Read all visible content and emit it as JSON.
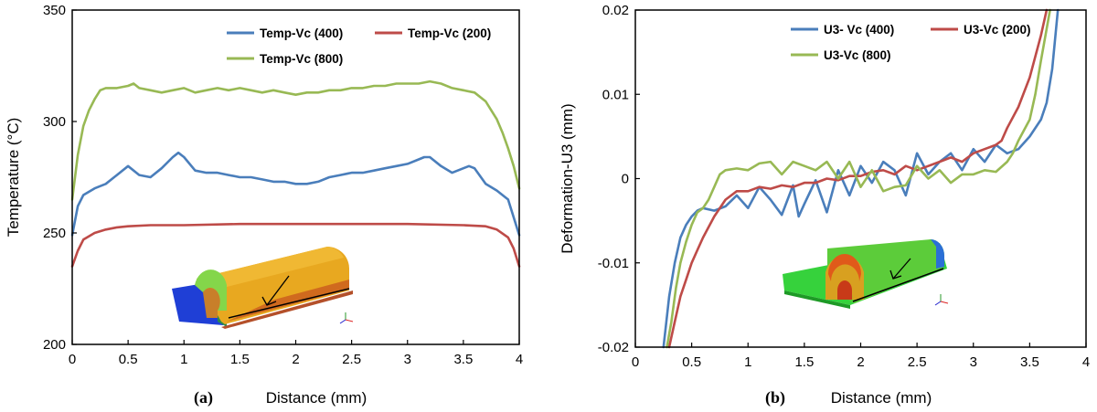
{
  "chart_data": [
    {
      "type": "line",
      "panel_label": "(a)",
      "title": "",
      "xlabel": "Distance (mm)",
      "ylabel": "Temperature (°C)",
      "xlim": [
        0,
        4
      ],
      "ylim": [
        200,
        350
      ],
      "xticks": [
        "0",
        "0.5",
        "1",
        "1.5",
        "2",
        "2.5",
        "3",
        "3.5",
        "4"
      ],
      "yticks": [
        "200",
        "250",
        "300",
        "350"
      ],
      "grid": false,
      "legend_position": "top-right",
      "inset": "3D model of tool-workpiece with arrow",
      "series": [
        {
          "name": "Temp-Vc (400)",
          "color": "#4a7ebb",
          "x": [
            0,
            0.05,
            0.1,
            0.2,
            0.3,
            0.4,
            0.5,
            0.6,
            0.7,
            0.8,
            0.9,
            0.95,
            1.0,
            1.1,
            1.2,
            1.3,
            1.4,
            1.5,
            1.6,
            1.7,
            1.8,
            1.9,
            2.0,
            2.1,
            2.2,
            2.3,
            2.4,
            2.5,
            2.6,
            2.7,
            2.8,
            2.9,
            3.0,
            3.1,
            3.15,
            3.2,
            3.3,
            3.4,
            3.5,
            3.55,
            3.6,
            3.7,
            3.8,
            3.9,
            4.0
          ],
          "values": [
            249,
            262,
            267,
            270,
            272,
            276,
            280,
            276,
            275,
            279,
            284,
            286,
            284,
            278,
            277,
            277,
            276,
            275,
            275,
            274,
            273,
            273,
            272,
            272,
            273,
            275,
            276,
            277,
            277,
            278,
            279,
            280,
            281,
            283,
            284,
            284,
            280,
            277,
            279,
            280,
            279,
            272,
            269,
            265,
            249
          ]
        },
        {
          "name": "Temp-Vc (200)",
          "color": "#be4b48",
          "x": [
            0,
            0.05,
            0.1,
            0.2,
            0.3,
            0.4,
            0.5,
            0.7,
            1.0,
            1.5,
            2.0,
            2.5,
            3.0,
            3.5,
            3.7,
            3.8,
            3.9,
            3.95,
            4.0
          ],
          "values": [
            235,
            242,
            247,
            250,
            251.5,
            252.5,
            253,
            253.5,
            253.5,
            254,
            254,
            254,
            254,
            253.5,
            253,
            251.5,
            248,
            243,
            235
          ]
        },
        {
          "name": "Temp-Vc (800)",
          "color": "#98b954",
          "x": [
            0,
            0.05,
            0.1,
            0.15,
            0.2,
            0.25,
            0.3,
            0.4,
            0.5,
            0.55,
            0.6,
            0.7,
            0.8,
            0.9,
            1.0,
            1.1,
            1.2,
            1.3,
            1.4,
            1.5,
            1.6,
            1.7,
            1.8,
            1.9,
            2.0,
            2.1,
            2.2,
            2.3,
            2.4,
            2.5,
            2.6,
            2.7,
            2.8,
            2.9,
            3.0,
            3.1,
            3.2,
            3.3,
            3.4,
            3.5,
            3.6,
            3.7,
            3.75,
            3.8,
            3.85,
            3.9,
            3.95,
            4.0
          ],
          "values": [
            265,
            285,
            298,
            305,
            310,
            314,
            315,
            315,
            316,
            317,
            315,
            314,
            313,
            314,
            315,
            313,
            314,
            315,
            314,
            315,
            314,
            313,
            314,
            313,
            312,
            313,
            313,
            314,
            314,
            315,
            315,
            316,
            316,
            317,
            317,
            317,
            318,
            317,
            315,
            314,
            313,
            309,
            305,
            301,
            295,
            288,
            280,
            270
          ]
        }
      ]
    },
    {
      "type": "line",
      "panel_label": "(b)",
      "title": "",
      "xlabel": "Distance (mm)",
      "ylabel": "Deformation-U3 (mm)",
      "xlim": [
        0,
        4
      ],
      "ylim": [
        -0.02,
        0.02
      ],
      "xticks": [
        "0",
        "0.5",
        "1",
        "1.5",
        "2",
        "2.5",
        "3",
        "3.5",
        "4"
      ],
      "yticks": [
        "-0.02",
        "-0.01",
        "0",
        "0.01",
        "0.02"
      ],
      "grid": false,
      "legend_position": "top-right",
      "inset": "3D model of deformed workpiece with arrow",
      "series": [
        {
          "name": "U3- Vc (400)",
          "color": "#4a7ebb",
          "x": [
            0.25,
            0.3,
            0.35,
            0.4,
            0.45,
            0.5,
            0.55,
            0.6,
            0.7,
            0.8,
            0.9,
            1.0,
            1.1,
            1.2,
            1.3,
            1.4,
            1.45,
            1.5,
            1.6,
            1.7,
            1.8,
            1.9,
            2.0,
            2.1,
            2.2,
            2.3,
            2.4,
            2.5,
            2.6,
            2.7,
            2.8,
            2.9,
            3.0,
            3.1,
            3.2,
            3.3,
            3.4,
            3.5,
            3.6,
            3.65,
            3.7,
            3.75
          ],
          "values": [
            -0.02,
            -0.014,
            -0.01,
            -0.007,
            -0.0055,
            -0.0045,
            -0.0038,
            -0.0035,
            -0.0038,
            -0.0033,
            -0.002,
            -0.0035,
            -0.001,
            -0.0025,
            -0.0043,
            -0.0008,
            -0.0045,
            -0.003,
            -0.0002,
            -0.004,
            0.001,
            -0.002,
            0.0015,
            -0.0005,
            0.002,
            0.001,
            -0.002,
            0.003,
            0.0005,
            0.002,
            0.003,
            0.001,
            0.0035,
            0.002,
            0.004,
            0.003,
            0.0035,
            0.005,
            0.007,
            0.009,
            0.013,
            0.02
          ]
        },
        {
          "name": "U3-Vc (200)",
          "color": "#be4b48",
          "x": [
            0.3,
            0.35,
            0.4,
            0.45,
            0.5,
            0.55,
            0.6,
            0.7,
            0.8,
            0.9,
            1.0,
            1.1,
            1.2,
            1.3,
            1.4,
            1.5,
            1.6,
            1.7,
            1.8,
            1.9,
            2.0,
            2.1,
            2.2,
            2.3,
            2.4,
            2.5,
            2.6,
            2.7,
            2.8,
            2.9,
            3.0,
            3.1,
            3.2,
            3.25,
            3.3,
            3.4,
            3.5,
            3.6,
            3.65
          ],
          "values": [
            -0.02,
            -0.017,
            -0.014,
            -0.012,
            -0.01,
            -0.0085,
            -0.007,
            -0.0045,
            -0.0025,
            -0.0015,
            -0.0015,
            -0.001,
            -0.0012,
            -0.0008,
            -0.001,
            -0.0005,
            -0.0005,
            0,
            -0.0002,
            0.0003,
            0.0003,
            0.0008,
            0.001,
            0.0005,
            0.0015,
            0.001,
            0.0015,
            0.002,
            0.0025,
            0.002,
            0.003,
            0.0035,
            0.004,
            0.0045,
            0.006,
            0.0085,
            0.012,
            0.017,
            0.02
          ]
        },
        {
          "name": "U3-Vc (800)",
          "color": "#98b954",
          "x": [
            0.28,
            0.32,
            0.36,
            0.4,
            0.45,
            0.5,
            0.55,
            0.6,
            0.65,
            0.7,
            0.75,
            0.8,
            0.9,
            1.0,
            1.1,
            1.2,
            1.3,
            1.4,
            1.5,
            1.6,
            1.7,
            1.8,
            1.9,
            2.0,
            2.1,
            2.2,
            2.3,
            2.4,
            2.5,
            2.6,
            2.7,
            2.8,
            2.9,
            3.0,
            3.1,
            3.2,
            3.3,
            3.35,
            3.4,
            3.5,
            3.55,
            3.6,
            3.68
          ],
          "values": [
            -0.02,
            -0.017,
            -0.013,
            -0.01,
            -0.0075,
            -0.0055,
            -0.004,
            -0.0035,
            -0.0025,
            -0.001,
            0.0005,
            0.001,
            0.0012,
            0.001,
            0.0018,
            0.002,
            0.0005,
            0.002,
            0.0015,
            0.001,
            0.002,
            0,
            0.002,
            -0.001,
            0.001,
            -0.0015,
            -0.001,
            -0.0008,
            0.0015,
            0,
            0.001,
            -0.0005,
            0.0005,
            0.0005,
            0.001,
            0.0008,
            0.002,
            0.003,
            0.0045,
            0.007,
            0.01,
            0.014,
            0.02
          ]
        }
      ]
    }
  ]
}
